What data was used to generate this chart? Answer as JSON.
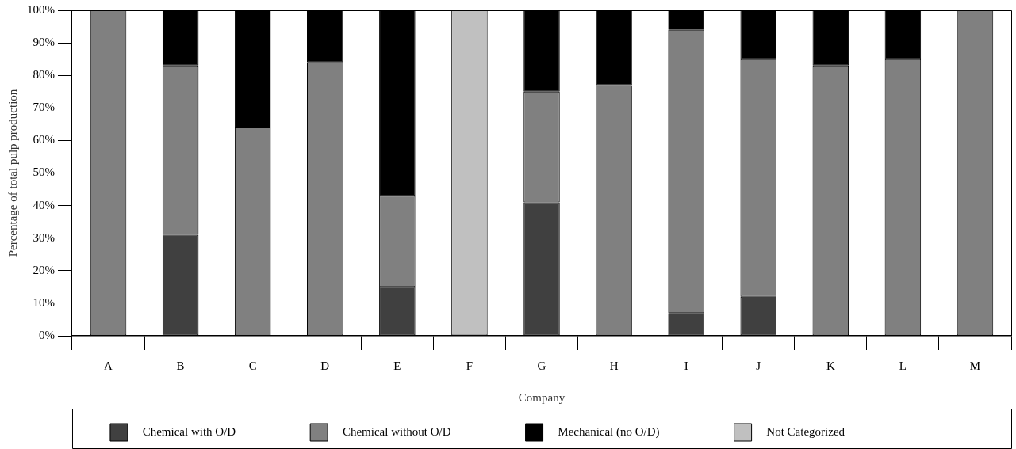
{
  "chart_data": {
    "type": "bar",
    "stacked": true,
    "xlabel": "Company",
    "ylabel": "Percentage of total pulp production",
    "categories": [
      "A",
      "B",
      "C",
      "D",
      "E",
      "F",
      "G",
      "H",
      "I",
      "J",
      "K",
      "L",
      "M"
    ],
    "series": [
      {
        "name": "Chemical with O/D",
        "color": "#404040",
        "values": [
          null,
          31,
          null,
          null,
          15,
          null,
          41,
          null,
          7,
          12,
          null,
          null,
          null
        ]
      },
      {
        "name": "Chemical without O/D",
        "color": "#808080",
        "values": [
          100,
          52,
          64,
          84,
          28,
          null,
          34,
          77,
          87,
          73,
          83,
          85,
          100
        ]
      },
      {
        "name": "Mechanical (no O/D)",
        "color": "#000000",
        "values": [
          null,
          17,
          36,
          16,
          57,
          null,
          25,
          23,
          6,
          15,
          17,
          15,
          null
        ]
      },
      {
        "name": "Not Categorized",
        "color": "#c0c0c0",
        "values": [
          null,
          null,
          null,
          null,
          null,
          100,
          null,
          null,
          null,
          null,
          null,
          null,
          null
        ]
      }
    ],
    "ylim": [
      0,
      100
    ],
    "yticks": [
      {
        "value": 0,
        "label": "0%"
      },
      {
        "value": 10,
        "label": "10%"
      },
      {
        "value": 20,
        "label": "20%"
      },
      {
        "value": 30,
        "label": "30%"
      },
      {
        "value": 40,
        "label": "40%"
      },
      {
        "value": 50,
        "label": "50%"
      },
      {
        "value": 60,
        "label": "60%"
      },
      {
        "value": 70,
        "label": "70%"
      },
      {
        "value": 80,
        "label": "80%"
      },
      {
        "value": 90,
        "label": "90%"
      },
      {
        "value": 100,
        "label": "100%"
      }
    ],
    "grid": false,
    "legend": "bottom"
  }
}
